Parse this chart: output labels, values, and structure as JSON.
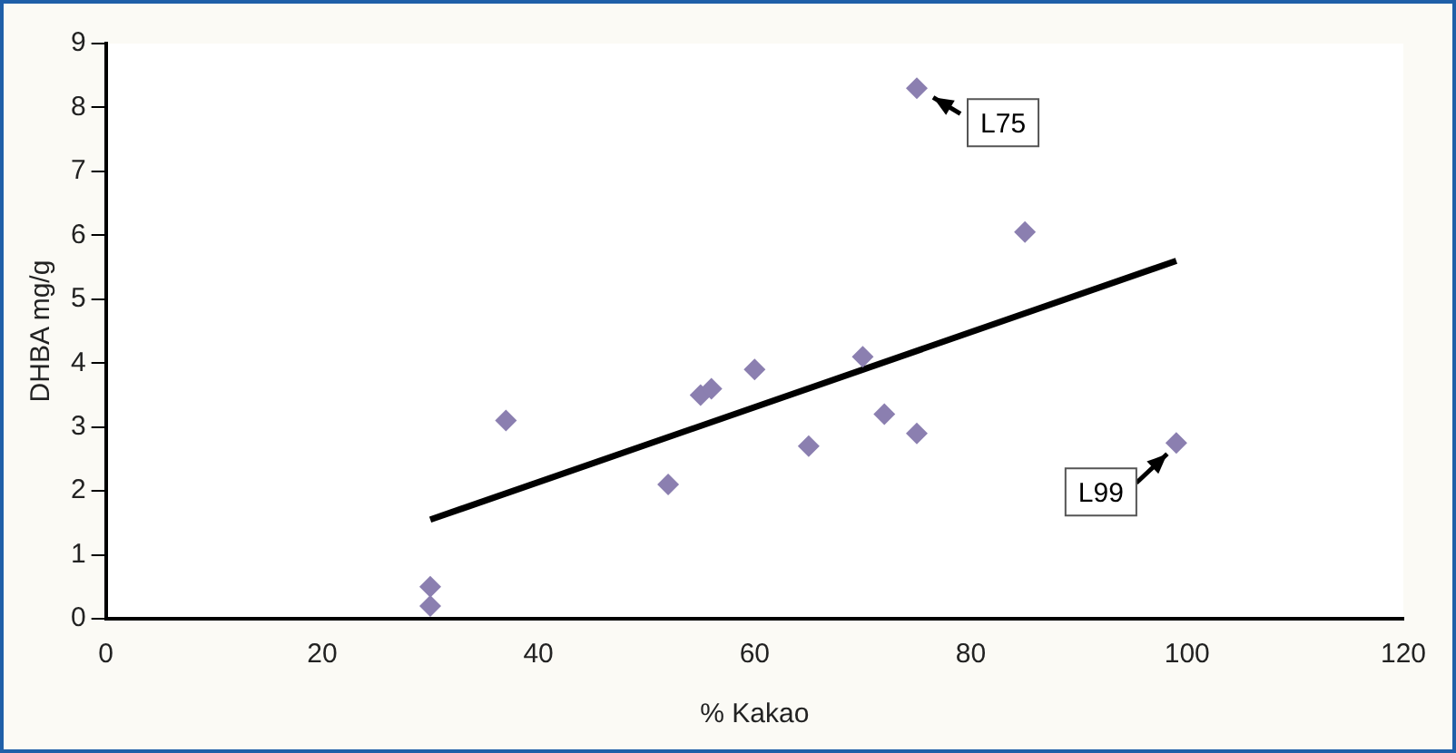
{
  "chart_data": {
    "type": "scatter",
    "xlabel": "% Kakao",
    "ylabel": "DHBA mg/g",
    "xlim": [
      0,
      120
    ],
    "xticks": [
      0,
      20,
      40,
      60,
      80,
      100,
      120
    ],
    "ylim": [
      0,
      9
    ],
    "yticks": [
      0,
      1,
      2,
      3,
      4,
      5,
      6,
      7,
      8,
      9
    ],
    "grid": false,
    "legend": false,
    "marker": "diamond",
    "series": [
      {
        "color": "#8b7fb0",
        "x": [
          30,
          30,
          37,
          52,
          55,
          56,
          60,
          65,
          70,
          72,
          75,
          75,
          85,
          99
        ],
        "values": [
          0.5,
          0.2,
          3.1,
          2.1,
          3.5,
          3.6,
          3.9,
          2.7,
          4.1,
          3.2,
          2.9,
          8.3,
          6.05,
          2.75
        ]
      },
      {
        "type": "line",
        "color": "#000000",
        "x": [
          30,
          99
        ],
        "values": [
          1.55,
          5.6
        ],
        "marker": "none",
        "line_style": "solid"
      }
    ],
    "annotations": [
      {
        "text": "L75",
        "x": 75,
        "y": 8.3
      },
      {
        "text": "L99",
        "x": 99,
        "y": 2.75
      }
    ]
  }
}
